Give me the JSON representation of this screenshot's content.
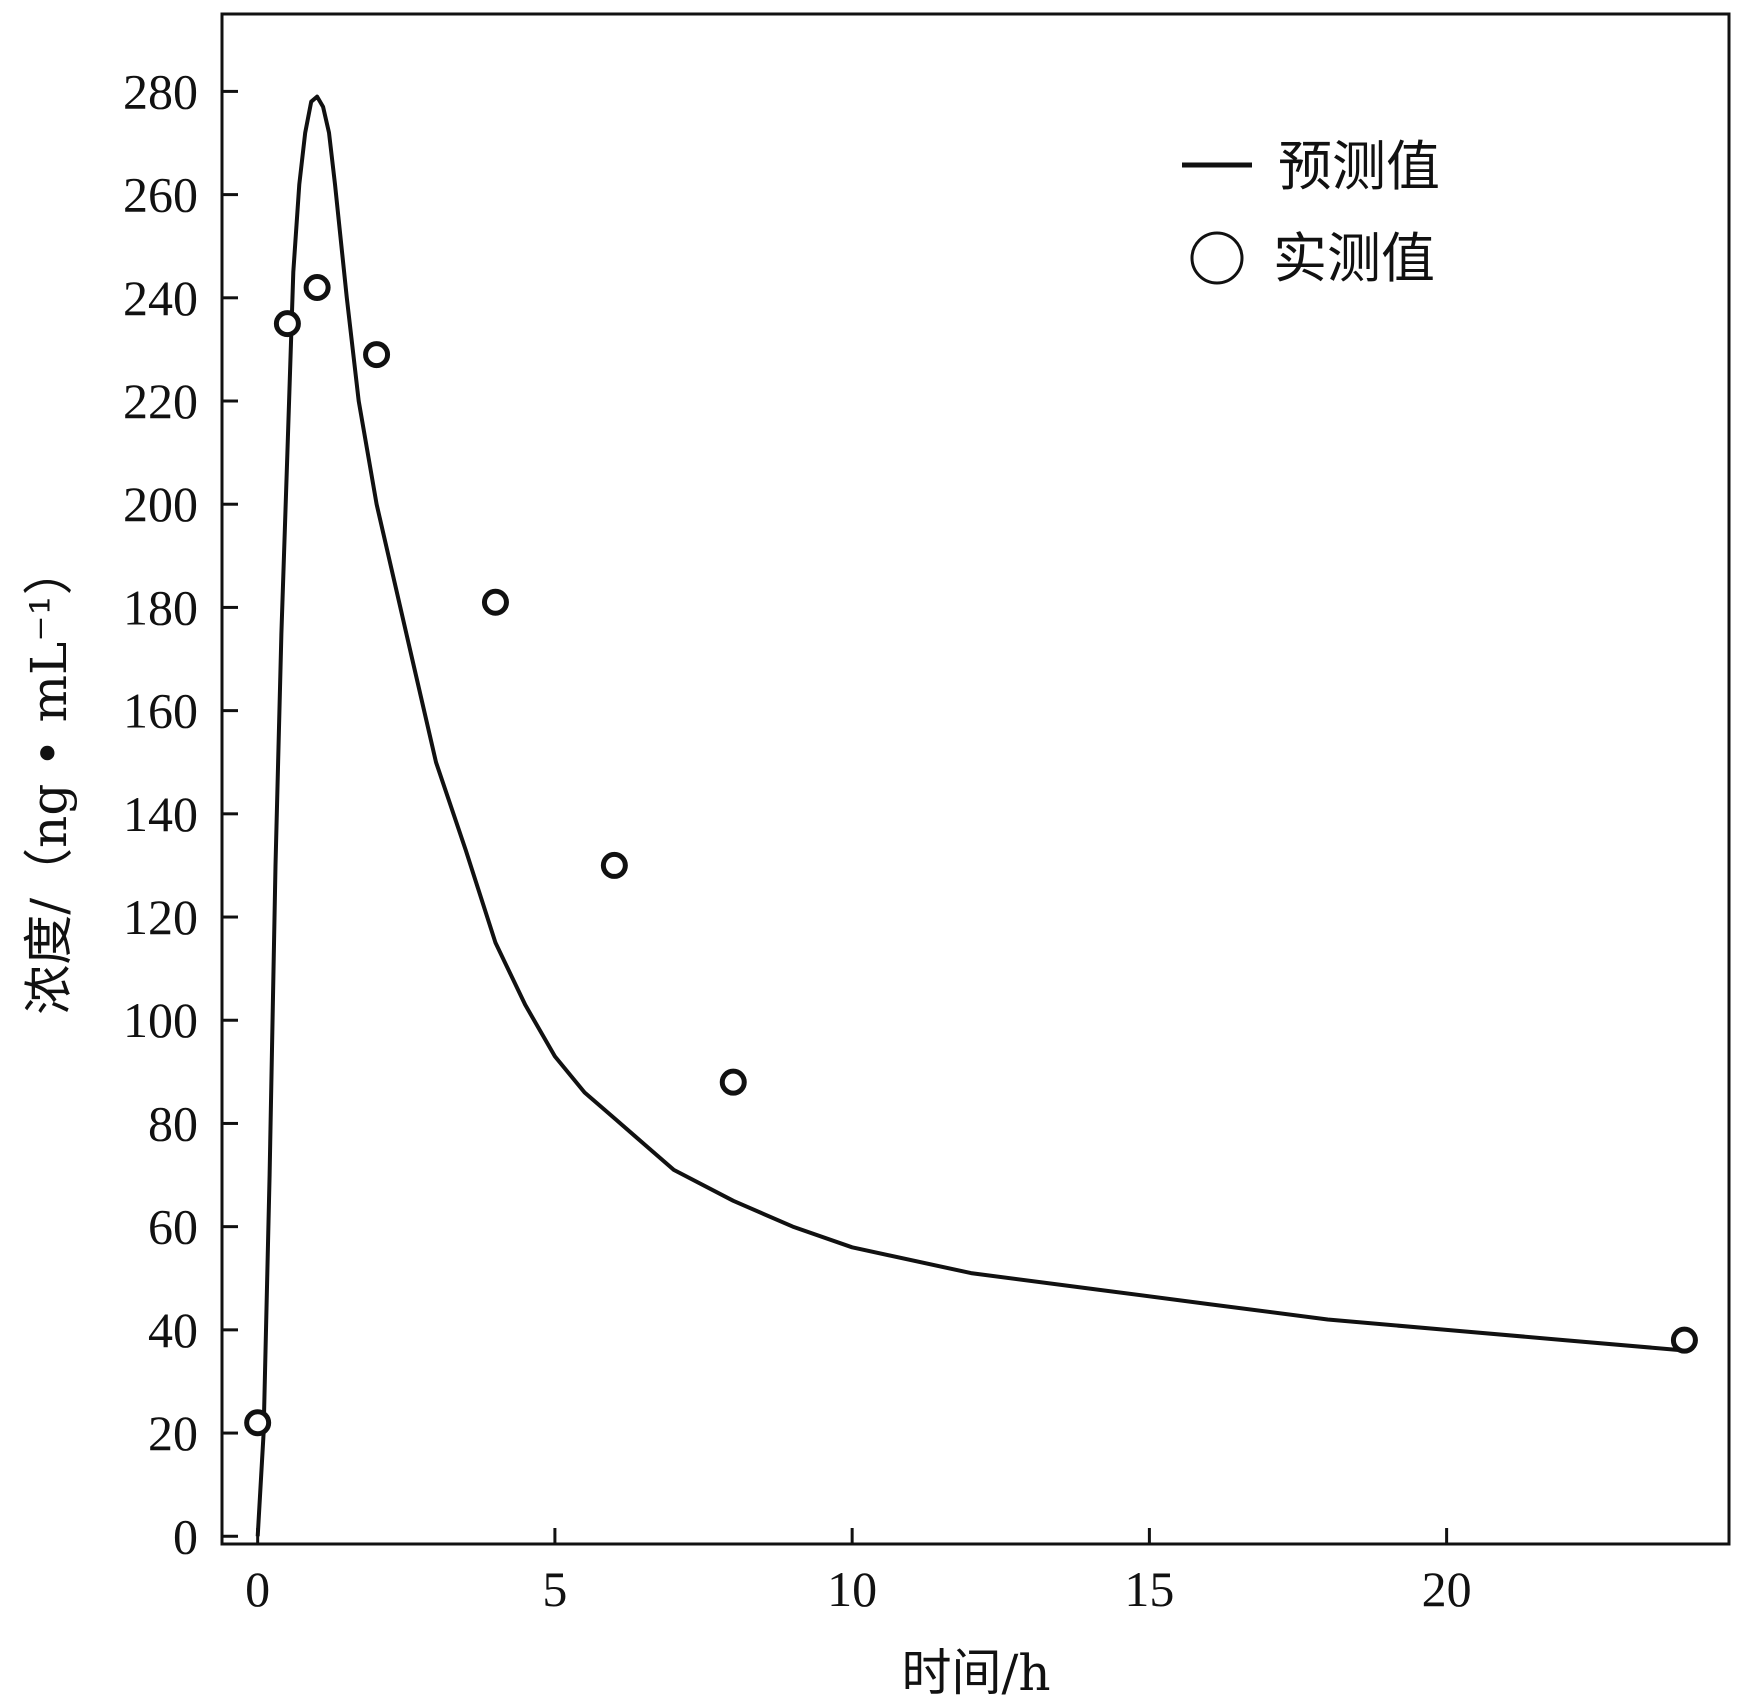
{
  "chart_data": {
    "type": "line",
    "title": "",
    "xlabel": "时间/h",
    "ylabel": "浓度/（ng • mL⁻¹）",
    "xlim": [
      -0.6,
      24.75
    ],
    "ylim": [
      -1.5,
      295
    ],
    "xticks": [
      0,
      5,
      10,
      15,
      20
    ],
    "yticks": [
      0,
      20,
      40,
      60,
      80,
      100,
      120,
      140,
      160,
      180,
      200,
      220,
      240,
      260,
      280
    ],
    "grid": false,
    "legend_position": "top-right",
    "series": [
      {
        "name": "预测值",
        "style": "line",
        "color": "#111111",
        "x": [
          0,
          0.1,
          0.2,
          0.3,
          0.4,
          0.5,
          0.6,
          0.7,
          0.8,
          0.9,
          1.0,
          1.1,
          1.2,
          1.3,
          1.5,
          1.7,
          2.0,
          2.3,
          2.6,
          3.0,
          3.5,
          4.0,
          4.5,
          5.0,
          5.5,
          6.0,
          7.0,
          8.0,
          9.0,
          10.0,
          12.0,
          14.0,
          16.0,
          18.0,
          20.0,
          22.0,
          24.0
        ],
        "y": [
          0,
          20,
          70,
          130,
          175,
          210,
          245,
          262,
          272,
          278,
          279,
          277,
          272,
          262,
          240,
          220,
          200,
          185,
          170,
          150,
          133,
          115,
          103,
          93,
          86,
          81,
          71,
          65,
          60,
          56,
          51,
          48,
          45,
          42,
          40,
          38,
          36
        ]
      },
      {
        "name": "实测值",
        "style": "scatter",
        "color": "#111111",
        "x": [
          0,
          0.5,
          1.0,
          2.0,
          4.0,
          6.0,
          8.0,
          24.0
        ],
        "y": [
          22,
          235,
          242,
          229,
          181,
          130,
          88,
          38
        ]
      }
    ]
  }
}
